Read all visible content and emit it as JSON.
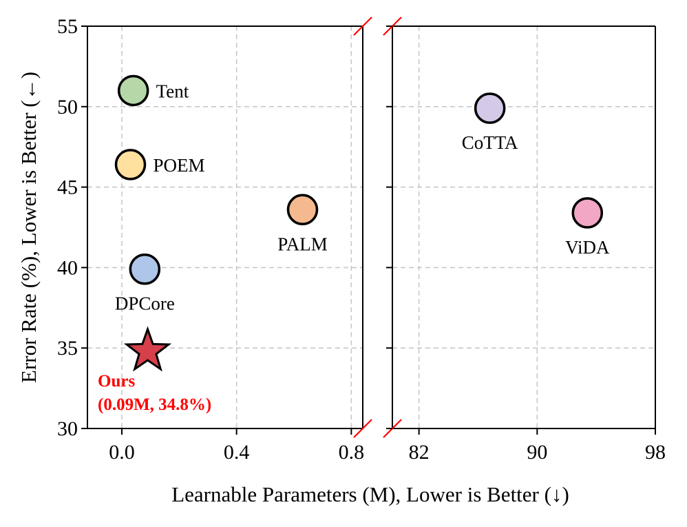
{
  "chart_data": {
    "type": "scatter",
    "xlabel": "Learnable Parameters (M), Lower is Better (↓)",
    "ylabel": "Error Rate (%), Lower is Better (←)",
    "ylim": [
      30,
      55
    ],
    "yticks": [
      30,
      35,
      40,
      45,
      50,
      55
    ],
    "broken_x_axis": true,
    "grid": true,
    "panels": [
      {
        "xlim": [
          -0.12,
          0.84
        ],
        "xticks": [
          0.0,
          0.4,
          0.8
        ],
        "xtick_labels": [
          "0.0",
          "0.4",
          "0.8"
        ]
      },
      {
        "xlim": [
          80.2,
          98
        ],
        "xticks": [
          82,
          90,
          98
        ],
        "xtick_labels": [
          "82",
          "90",
          "98"
        ]
      }
    ],
    "points": [
      {
        "label": "Tent",
        "x": 0.04,
        "y": 51.0,
        "panel": 0,
        "color": "#b6d7a8",
        "marker": "circle",
        "label_pos": "right"
      },
      {
        "label": "POEM",
        "x": 0.03,
        "y": 46.4,
        "panel": 0,
        "color": "#ffe09e",
        "marker": "circle",
        "label_pos": "right"
      },
      {
        "label": "PALM",
        "x": 0.63,
        "y": 43.6,
        "panel": 0,
        "color": "#f4b98f",
        "marker": "circle",
        "label_pos": "below"
      },
      {
        "label": "DPCore",
        "x": 0.08,
        "y": 39.9,
        "panel": 0,
        "color": "#aec6ea",
        "marker": "circle",
        "label_pos": "below"
      },
      {
        "label": "CoTTA",
        "x": 86.8,
        "y": 49.9,
        "panel": 1,
        "color": "#d5c9e8",
        "marker": "circle",
        "label_pos": "below"
      },
      {
        "label": "ViDA",
        "x": 93.4,
        "y": 43.4,
        "panel": 1,
        "color": "#f2a7c5",
        "marker": "circle",
        "label_pos": "below"
      },
      {
        "label": "Ours",
        "x": 0.09,
        "y": 34.8,
        "panel": 0,
        "color": "#d6404a",
        "marker": "star",
        "label_pos": "below-left",
        "annotation": "(0.09M, 34.8%)",
        "label_color": "#ff0000"
      }
    ]
  }
}
